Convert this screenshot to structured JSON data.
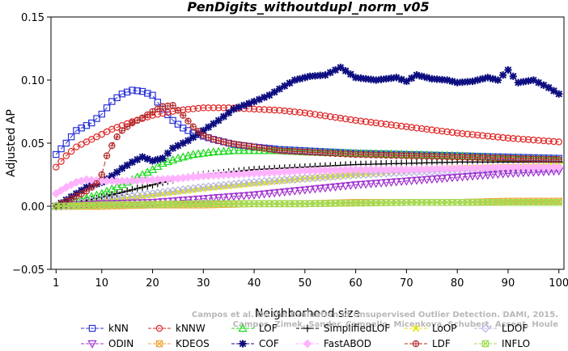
{
  "chart_data": {
    "type": "line",
    "title": "PenDigits_withoutdupl_norm_v05",
    "xlabel": "Neighborhood size",
    "ylabel": "Adjusted AP",
    "xlim": [
      0,
      101
    ],
    "ylim": [
      -0.05,
      0.15
    ],
    "x_ticks": [
      1,
      10,
      20,
      30,
      40,
      50,
      60,
      70,
      80,
      90,
      100
    ],
    "y_ticks": [
      -0.05,
      0.0,
      0.05,
      0.1,
      0.15
    ],
    "y_tick_labels": [
      "−0.05",
      "0.00",
      "0.05",
      "0.10",
      "0.15"
    ],
    "legend_position": "bottom",
    "watermark": [
      "Campos et al. On the Evaluation of Unsupervised Outlier Detection. DAMI, 2015.",
      "Campos, Zimek, Sander, Campello, Micenkova, Schubert, Assent, Houle"
    ],
    "series": [
      {
        "name": "kNN",
        "color": "#2a33d9",
        "marker": "square",
        "dash": "6,3",
        "keypoints": [
          [
            1,
            0.041
          ],
          [
            3,
            0.05
          ],
          [
            5,
            0.06
          ],
          [
            8,
            0.066
          ],
          [
            10,
            0.073
          ],
          [
            12,
            0.083
          ],
          [
            14,
            0.089
          ],
          [
            16,
            0.092
          ],
          [
            18,
            0.091
          ],
          [
            20,
            0.088
          ],
          [
            22,
            0.077
          ],
          [
            24,
            0.068
          ],
          [
            26,
            0.062
          ],
          [
            28,
            0.058
          ],
          [
            32,
            0.053
          ],
          [
            36,
            0.049
          ],
          [
            40,
            0.047
          ],
          [
            45,
            0.045
          ],
          [
            50,
            0.044
          ],
          [
            60,
            0.042
          ],
          [
            70,
            0.041
          ],
          [
            80,
            0.04
          ],
          [
            90,
            0.039
          ],
          [
            100,
            0.038
          ]
        ]
      },
      {
        "name": "kNNW",
        "color": "#e02424",
        "marker": "circle",
        "dash": "6,3",
        "keypoints": [
          [
            1,
            0.031
          ],
          [
            3,
            0.04
          ],
          [
            5,
            0.047
          ],
          [
            8,
            0.053
          ],
          [
            12,
            0.061
          ],
          [
            16,
            0.067
          ],
          [
            20,
            0.072
          ],
          [
            25,
            0.076
          ],
          [
            30,
            0.078
          ],
          [
            35,
            0.078
          ],
          [
            40,
            0.077
          ],
          [
            45,
            0.076
          ],
          [
            50,
            0.074
          ],
          [
            60,
            0.068
          ],
          [
            70,
            0.063
          ],
          [
            80,
            0.058
          ],
          [
            90,
            0.054
          ],
          [
            100,
            0.051
          ]
        ]
      },
      {
        "name": "LOF",
        "color": "#19d919",
        "marker": "triangle-up",
        "dash": "6,3",
        "keypoints": [
          [
            1,
            0.0
          ],
          [
            5,
            0.004
          ],
          [
            10,
            0.01
          ],
          [
            15,
            0.019
          ],
          [
            18,
            0.025
          ],
          [
            20,
            0.029
          ],
          [
            22,
            0.034
          ],
          [
            25,
            0.038
          ],
          [
            28,
            0.041
          ],
          [
            32,
            0.043
          ],
          [
            36,
            0.044
          ],
          [
            40,
            0.044
          ],
          [
            45,
            0.044
          ],
          [
            50,
            0.043
          ],
          [
            60,
            0.042
          ],
          [
            70,
            0.041
          ],
          [
            80,
            0.04
          ],
          [
            90,
            0.038
          ],
          [
            100,
            0.037
          ]
        ]
      },
      {
        "name": "SimplifiedLOF",
        "color": "#000000",
        "marker": "plus",
        "dash": "6,3",
        "keypoints": [
          [
            1,
            0.0
          ],
          [
            5,
            0.003
          ],
          [
            10,
            0.007
          ],
          [
            15,
            0.012
          ],
          [
            20,
            0.017
          ],
          [
            25,
            0.022
          ],
          [
            30,
            0.025
          ],
          [
            35,
            0.027
          ],
          [
            40,
            0.029
          ],
          [
            45,
            0.03
          ],
          [
            50,
            0.031
          ],
          [
            60,
            0.033
          ],
          [
            70,
            0.034
          ],
          [
            80,
            0.035
          ],
          [
            90,
            0.035
          ],
          [
            100,
            0.035
          ]
        ]
      },
      {
        "name": "LoOP",
        "color": "#e6e600",
        "marker": "cross",
        "dash": "6,3",
        "keypoints": [
          [
            1,
            0.0
          ],
          [
            10,
            0.004
          ],
          [
            20,
            0.009
          ],
          [
            30,
            0.014
          ],
          [
            40,
            0.018
          ],
          [
            50,
            0.022
          ],
          [
            60,
            0.025
          ],
          [
            70,
            0.028
          ],
          [
            80,
            0.03
          ],
          [
            90,
            0.031
          ],
          [
            100,
            0.032
          ]
        ]
      },
      {
        "name": "LDOF",
        "color": "#b3b3e6",
        "marker": "diamond",
        "dash": "6,3",
        "keypoints": [
          [
            1,
            0.0
          ],
          [
            10,
            0.005
          ],
          [
            20,
            0.01
          ],
          [
            30,
            0.015
          ],
          [
            40,
            0.019
          ],
          [
            50,
            0.022
          ],
          [
            60,
            0.025
          ],
          [
            70,
            0.027
          ],
          [
            80,
            0.028
          ],
          [
            90,
            0.029
          ],
          [
            100,
            0.03
          ]
        ]
      },
      {
        "name": "ODIN",
        "color": "#a030d0",
        "marker": "triangle-down",
        "dash": "6,3",
        "keypoints": [
          [
            1,
            0.0
          ],
          [
            10,
            0.002
          ],
          [
            20,
            0.003
          ],
          [
            30,
            0.006
          ],
          [
            40,
            0.009
          ],
          [
            50,
            0.013
          ],
          [
            60,
            0.017
          ],
          [
            70,
            0.02
          ],
          [
            80,
            0.023
          ],
          [
            90,
            0.026
          ],
          [
            100,
            0.028
          ]
        ]
      },
      {
        "name": "COF",
        "color": "#0d0d80",
        "marker": "asterisk",
        "dash": "6,3",
        "keypoints": [
          [
            1,
            0.0
          ],
          [
            3,
            0.005
          ],
          [
            5,
            0.01
          ],
          [
            7,
            0.015
          ],
          [
            10,
            0.019
          ],
          [
            12,
            0.024
          ],
          [
            14,
            0.03
          ],
          [
            16,
            0.035
          ],
          [
            18,
            0.039
          ],
          [
            20,
            0.036
          ],
          [
            22,
            0.038
          ],
          [
            24,
            0.046
          ],
          [
            27,
            0.052
          ],
          [
            30,
            0.06
          ],
          [
            33,
            0.068
          ],
          [
            36,
            0.077
          ],
          [
            40,
            0.083
          ],
          [
            43,
            0.088
          ],
          [
            45,
            0.093
          ],
          [
            48,
            0.1
          ],
          [
            51,
            0.103
          ],
          [
            54,
            0.104
          ],
          [
            57,
            0.11
          ],
          [
            60,
            0.102
          ],
          [
            64,
            0.1
          ],
          [
            68,
            0.102
          ],
          [
            70,
            0.099
          ],
          [
            72,
            0.104
          ],
          [
            75,
            0.101
          ],
          [
            78,
            0.1
          ],
          [
            80,
            0.098
          ],
          [
            83,
            0.099
          ],
          [
            86,
            0.102
          ],
          [
            88,
            0.1
          ],
          [
            90,
            0.108
          ],
          [
            92,
            0.098
          ],
          [
            95,
            0.1
          ],
          [
            98,
            0.094
          ],
          [
            100,
            0.089
          ]
        ]
      },
      {
        "name": "FastABOD",
        "color": "#ffb3ff",
        "marker": "diamond-filled",
        "dash": "6,3",
        "keypoints": [
          [
            1,
            0.01
          ],
          [
            3,
            0.015
          ],
          [
            5,
            0.019
          ],
          [
            7,
            0.021
          ],
          [
            10,
            0.02
          ],
          [
            15,
            0.02
          ],
          [
            20,
            0.021
          ],
          [
            25,
            0.022
          ],
          [
            30,
            0.024
          ],
          [
            40,
            0.026
          ],
          [
            50,
            0.028
          ],
          [
            60,
            0.029
          ],
          [
            70,
            0.029
          ],
          [
            80,
            0.03
          ],
          [
            90,
            0.031
          ],
          [
            100,
            0.031
          ]
        ]
      },
      {
        "name": "LDF",
        "color": "#b32a2a",
        "marker": "circle-plus",
        "dash": "6,3",
        "keypoints": [
          [
            1,
            0.0
          ],
          [
            3,
            0.004
          ],
          [
            5,
            0.008
          ],
          [
            7,
            0.012
          ],
          [
            9,
            0.018
          ],
          [
            10,
            0.025
          ],
          [
            11,
            0.04
          ],
          [
            12,
            0.048
          ],
          [
            13,
            0.055
          ],
          [
            14,
            0.06
          ],
          [
            16,
            0.066
          ],
          [
            18,
            0.07
          ],
          [
            20,
            0.075
          ],
          [
            22,
            0.079
          ],
          [
            24,
            0.08
          ],
          [
            26,
            0.072
          ],
          [
            28,
            0.063
          ],
          [
            30,
            0.056
          ],
          [
            32,
            0.053
          ],
          [
            35,
            0.05
          ],
          [
            40,
            0.047
          ],
          [
            45,
            0.044
          ],
          [
            50,
            0.043
          ],
          [
            60,
            0.041
          ],
          [
            70,
            0.04
          ],
          [
            80,
            0.039
          ],
          [
            90,
            0.038
          ],
          [
            100,
            0.037
          ]
        ]
      },
      {
        "name": "KDEOS",
        "color": "#f2a63a",
        "marker": "box-x",
        "dash": "6,3",
        "keypoints": [
          [
            1,
            0.0
          ],
          [
            10,
            0.0
          ],
          [
            20,
            0.001
          ],
          [
            30,
            0.001
          ],
          [
            40,
            0.002
          ],
          [
            50,
            0.002
          ],
          [
            60,
            0.003
          ],
          [
            70,
            0.003
          ],
          [
            80,
            0.003
          ],
          [
            90,
            0.004
          ],
          [
            100,
            0.004
          ]
        ]
      },
      {
        "name": "INFLO",
        "color": "#9fdc50",
        "marker": "box-x",
        "dash": "6,3",
        "keypoints": [
          [
            1,
            0.0
          ],
          [
            10,
            0.001
          ],
          [
            20,
            0.0015
          ],
          [
            30,
            0.002
          ],
          [
            40,
            0.002
          ],
          [
            50,
            0.002
          ],
          [
            60,
            0.0025
          ],
          [
            70,
            0.003
          ],
          [
            80,
            0.003
          ],
          [
            90,
            0.003
          ],
          [
            100,
            0.003
          ]
        ]
      }
    ]
  },
  "legend": {
    "row1": [
      "kNN",
      "kNNW",
      "LOF",
      "SimplifiedLOF",
      "LoOP",
      "LDOF"
    ],
    "row2": [
      "ODIN",
      "KDEOS",
      "COF",
      "FastABOD",
      "LDF",
      "INFLO"
    ]
  }
}
